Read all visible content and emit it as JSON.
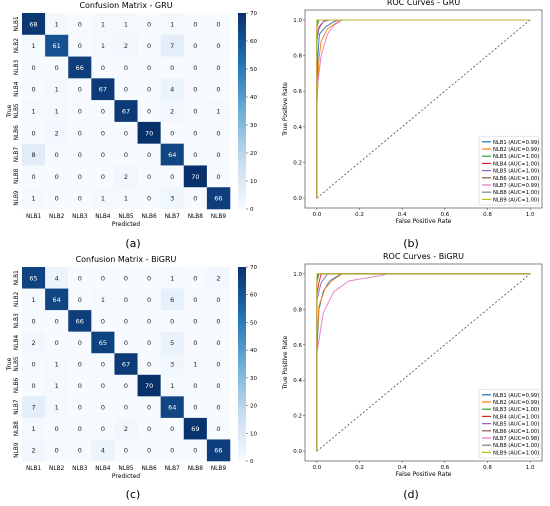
{
  "captions": [
    "(a)",
    "(b)",
    "(c)",
    "(d)"
  ],
  "chart_data": [
    {
      "type": "heatmap",
      "title": "Confusion Matrix - GRU",
      "xlabel": "Predicted",
      "ylabel": "True",
      "x_labels": [
        "NLB1",
        "NLB2",
        "NLB3",
        "NLB4",
        "NLB5",
        "NLB6",
        "NLB7",
        "NLB8",
        "NLB9"
      ],
      "y_labels": [
        "NLB1",
        "NLB2",
        "NLB3",
        "NLB4",
        "NLB5",
        "NLB6",
        "NLB7",
        "NLB8",
        "NLB9"
      ],
      "values": [
        [
          68,
          1,
          0,
          1,
          1,
          0,
          1,
          0,
          0
        ],
        [
          1,
          61,
          0,
          1,
          2,
          0,
          7,
          0,
          0
        ],
        [
          0,
          0,
          66,
          0,
          0,
          0,
          0,
          0,
          0
        ],
        [
          0,
          1,
          0,
          67,
          0,
          0,
          4,
          0,
          0
        ],
        [
          1,
          1,
          0,
          0,
          67,
          0,
          2,
          0,
          1
        ],
        [
          0,
          2,
          0,
          0,
          0,
          70,
          0,
          0,
          0
        ],
        [
          8,
          0,
          0,
          0,
          0,
          0,
          64,
          0,
          0
        ],
        [
          0,
          0,
          0,
          0,
          2,
          0,
          0,
          70,
          0
        ],
        [
          1,
          0,
          0,
          1,
          1,
          0,
          3,
          0,
          66
        ]
      ],
      "colorbar_ticks": [
        0,
        10,
        20,
        30,
        40,
        50,
        60,
        70
      ],
      "vmin": 0,
      "vmax": 70
    },
    {
      "type": "line",
      "title": "ROC Curves - GRU",
      "xlabel": "False Positive Rate",
      "ylabel": "True Positive Rate",
      "xlim": [
        0,
        1
      ],
      "ylim": [
        0,
        1
      ],
      "x_ticks": [
        "0.0",
        "0.2",
        "0.4",
        "0.6",
        "0.8",
        "1.0"
      ],
      "y_ticks": [
        "0.0",
        "0.2",
        "0.4",
        "0.6",
        "0.8",
        "1.0"
      ],
      "legend_position": "lower-right",
      "series": [
        {
          "name": "NLB1 (AUC=0.99)",
          "color": "#1f77b4",
          "points": [
            [
              0,
              0
            ],
            [
              0,
              0.55
            ],
            [
              0.005,
              0.8
            ],
            [
              0.012,
              0.92
            ],
            [
              0.04,
              0.96
            ],
            [
              0.08,
              0.99
            ],
            [
              0.1,
              1
            ],
            [
              1,
              1
            ]
          ]
        },
        {
          "name": "NLB2 (AUC=0.99)",
          "color": "#ff7f0e",
          "points": [
            [
              0,
              0
            ],
            [
              0,
              0.5
            ],
            [
              0.01,
              0.78
            ],
            [
              0.02,
              0.88
            ],
            [
              0.05,
              0.95
            ],
            [
              0.1,
              0.99
            ],
            [
              0.12,
              1
            ],
            [
              1,
              1
            ]
          ]
        },
        {
          "name": "NLB3 (AUC=1.00)",
          "color": "#2ca02c",
          "points": [
            [
              0,
              0
            ],
            [
              0,
              0.96
            ],
            [
              0.01,
              1
            ],
            [
              1,
              1
            ]
          ]
        },
        {
          "name": "NLB4 (AUC=1.00)",
          "color": "#d62728",
          "points": [
            [
              0,
              0
            ],
            [
              0,
              0.9
            ],
            [
              0.01,
              0.96
            ],
            [
              0.03,
              0.99
            ],
            [
              0.05,
              1
            ],
            [
              1,
              1
            ]
          ]
        },
        {
          "name": "NLB5 (AUC=1.00)",
          "color": "#9467bd",
          "points": [
            [
              0,
              0
            ],
            [
              0,
              0.88
            ],
            [
              0.01,
              0.95
            ],
            [
              0.03,
              0.99
            ],
            [
              0.06,
              1
            ],
            [
              1,
              1
            ]
          ]
        },
        {
          "name": "NLB6 (AUC=1.00)",
          "color": "#8c564b",
          "points": [
            [
              0,
              0
            ],
            [
              0,
              0.98
            ],
            [
              0.005,
              1
            ],
            [
              1,
              1
            ]
          ]
        },
        {
          "name": "NLB7 (AUC=0.99)",
          "color": "#e377c2",
          "points": [
            [
              0,
              0
            ],
            [
              0,
              0.6
            ],
            [
              0.02,
              0.8
            ],
            [
              0.05,
              0.92
            ],
            [
              0.08,
              0.97
            ],
            [
              0.12,
              1
            ],
            [
              1,
              1
            ]
          ]
        },
        {
          "name": "NLB8 (AUC=1.00)",
          "color": "#7f7f7f",
          "points": [
            [
              0,
              0
            ],
            [
              0,
              0.97
            ],
            [
              0.005,
              1
            ],
            [
              1,
              1
            ]
          ]
        },
        {
          "name": "NLB9 (AUC=1.00)",
          "color": "#bcbd22",
          "points": [
            [
              0,
              0
            ],
            [
              0,
              1
            ],
            [
              1,
              1
            ]
          ]
        }
      ]
    },
    {
      "type": "heatmap",
      "title": "Confusion Matrix - BiGRU",
      "xlabel": "Predicted",
      "ylabel": "True",
      "x_labels": [
        "NLB1",
        "NLB2",
        "NLB3",
        "NLB4",
        "NLB5",
        "NLB6",
        "NLB7",
        "NLB8",
        "NLB9"
      ],
      "y_labels": [
        "NLB1",
        "NLB2",
        "NLB3",
        "NLB4",
        "NLB5",
        "NLB6",
        "NLB7",
        "NLB8",
        "NLB9"
      ],
      "values": [
        [
          65,
          4,
          0,
          0,
          0,
          0,
          1,
          0,
          2
        ],
        [
          1,
          64,
          0,
          1,
          0,
          0,
          6,
          0,
          0
        ],
        [
          0,
          0,
          66,
          0,
          0,
          0,
          0,
          0,
          0
        ],
        [
          2,
          0,
          0,
          65,
          0,
          0,
          5,
          0,
          0
        ],
        [
          0,
          1,
          0,
          0,
          67,
          0,
          3,
          1,
          0
        ],
        [
          0,
          1,
          0,
          0,
          0,
          70,
          1,
          0,
          0
        ],
        [
          7,
          1,
          0,
          0,
          0,
          0,
          64,
          0,
          0
        ],
        [
          1,
          0,
          0,
          0,
          2,
          0,
          0,
          69,
          0
        ],
        [
          2,
          0,
          0,
          4,
          0,
          0,
          0,
          0,
          66
        ]
      ],
      "colorbar_ticks": [
        0,
        10,
        20,
        30,
        40,
        50,
        60,
        70
      ],
      "vmin": 0,
      "vmax": 70
    },
    {
      "type": "line",
      "title": "ROC Curves - BiGRU",
      "xlabel": "False Positive Rate",
      "ylabel": "True Positive Rate",
      "xlim": [
        0,
        1
      ],
      "ylim": [
        0,
        1
      ],
      "x_ticks": [
        "0.0",
        "0.2",
        "0.4",
        "0.6",
        "0.8",
        "1.0"
      ],
      "y_ticks": [
        "0.0",
        "0.2",
        "0.4",
        "0.6",
        "0.8",
        "1.0"
      ],
      "legend_position": "lower-right",
      "series": [
        {
          "name": "NLB1 (AUC=0.99)",
          "color": "#1f77b4",
          "points": [
            [
              0,
              0
            ],
            [
              0,
              0.55
            ],
            [
              0.01,
              0.8
            ],
            [
              0.03,
              0.9
            ],
            [
              0.06,
              0.96
            ],
            [
              0.1,
              0.99
            ],
            [
              0.12,
              1
            ],
            [
              1,
              1
            ]
          ]
        },
        {
          "name": "NLB2 (AUC=0.99)",
          "color": "#ff7f0e",
          "points": [
            [
              0,
              0
            ],
            [
              0,
              0.6
            ],
            [
              0.01,
              0.82
            ],
            [
              0.04,
              0.92
            ],
            [
              0.08,
              0.97
            ],
            [
              0.12,
              1
            ],
            [
              1,
              1
            ]
          ]
        },
        {
          "name": "NLB3 (AUC=1.00)",
          "color": "#2ca02c",
          "points": [
            [
              0,
              0
            ],
            [
              0,
              0.95
            ],
            [
              0.01,
              1
            ],
            [
              1,
              1
            ]
          ]
        },
        {
          "name": "NLB4 (AUC=1.00)",
          "color": "#d62728",
          "points": [
            [
              0,
              0
            ],
            [
              0,
              0.88
            ],
            [
              0.01,
              0.95
            ],
            [
              0.02,
              1
            ],
            [
              1,
              1
            ]
          ]
        },
        {
          "name": "NLB5 (AUC=1.00)",
          "color": "#9467bd",
          "points": [
            [
              0,
              0
            ],
            [
              0,
              0.85
            ],
            [
              0.02,
              0.95
            ],
            [
              0.05,
              1
            ],
            [
              1,
              1
            ]
          ]
        },
        {
          "name": "NLB6 (AUC=1.00)",
          "color": "#8c564b",
          "points": [
            [
              0,
              0
            ],
            [
              0,
              0.97
            ],
            [
              0.005,
              1
            ],
            [
              1,
              1
            ]
          ]
        },
        {
          "name": "NLB7 (AUC=0.98)",
          "color": "#e377c2",
          "points": [
            [
              0,
              0
            ],
            [
              0,
              0.55
            ],
            [
              0.03,
              0.78
            ],
            [
              0.08,
              0.9
            ],
            [
              0.15,
              0.96
            ],
            [
              0.3,
              0.99
            ],
            [
              0.33,
              1
            ],
            [
              1,
              1
            ]
          ]
        },
        {
          "name": "NLB8 (AUC=1.00)",
          "color": "#7f7f7f",
          "points": [
            [
              0,
              0
            ],
            [
              0,
              0.96
            ],
            [
              0.01,
              1
            ],
            [
              1,
              1
            ]
          ]
        },
        {
          "name": "NLB9 (AUC=1.00)",
          "color": "#bcbd22",
          "points": [
            [
              0,
              0
            ],
            [
              0,
              1
            ],
            [
              1,
              1
            ]
          ]
        }
      ]
    }
  ]
}
